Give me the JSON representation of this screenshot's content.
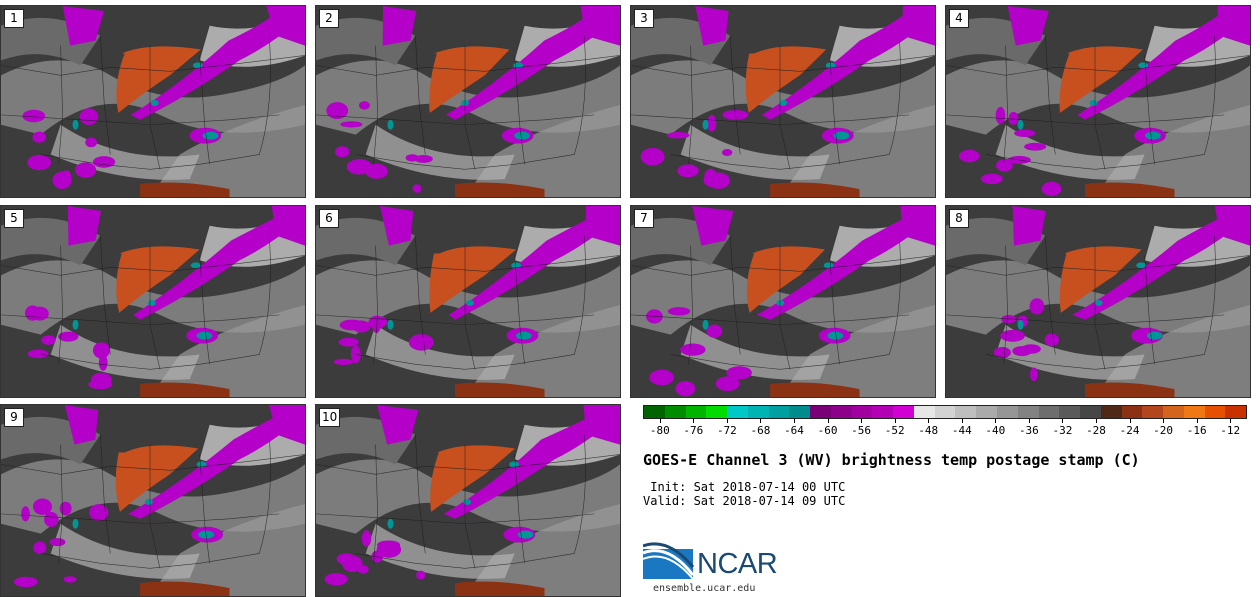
{
  "panels": [
    {
      "label": "1"
    },
    {
      "label": "2"
    },
    {
      "label": "3"
    },
    {
      "label": "4"
    },
    {
      "label": "5"
    },
    {
      "label": "6"
    },
    {
      "label": "7"
    },
    {
      "label": "8"
    },
    {
      "label": "9"
    },
    {
      "label": "10"
    }
  ],
  "colorbar": {
    "colors": [
      "#006400",
      "#008c00",
      "#00b400",
      "#00dc00",
      "#00c8c8",
      "#00b4b4",
      "#00a0a0",
      "#008c8c",
      "#7a0078",
      "#8c008c",
      "#a000a0",
      "#b400b4",
      "#d200d2",
      "#e6e6e6",
      "#d2d2d2",
      "#bebebe",
      "#aaaaaa",
      "#969696",
      "#828282",
      "#6e6e6e",
      "#5a5a5a",
      "#464646",
      "#502818",
      "#8c3214",
      "#b4461e",
      "#d2641e",
      "#f07814",
      "#e65000",
      "#c83200"
    ],
    "ticks": [
      "-80",
      "-76",
      "-72",
      "-68",
      "-64",
      "-60",
      "-56",
      "-52",
      "-48",
      "-44",
      "-40",
      "-36",
      "-32",
      "-28",
      "-24",
      "-20",
      "-16",
      "-12"
    ]
  },
  "title": "GOES-E Channel 3 (WV) brightness temp postage stamp (C)",
  "init": " Init: Sat 2018-07-14 00 UTC",
  "valid": "Valid: Sat 2018-07-14 09 UTC",
  "logo": {
    "text": "NCAR",
    "site": "ensemble.ucar.edu"
  },
  "palette": {
    "bg_dark": "#3c3c3c",
    "gray_mid": "#8c8c8c",
    "gray_light": "#c8c8c8",
    "orange": "#c8501e",
    "magenta": "#b400c8",
    "teal": "#009696",
    "border": "#1e1e1e"
  }
}
